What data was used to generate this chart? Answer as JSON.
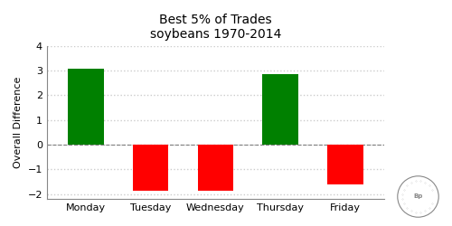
{
  "categories": [
    "Monday",
    "Tuesday",
    "Wednesday",
    "Thursday",
    "Friday"
  ],
  "values": [
    3.07,
    -1.85,
    -1.87,
    2.85,
    -1.6
  ],
  "bar_colors": [
    "#008000",
    "#ff0000",
    "#ff0000",
    "#008000",
    "#ff0000"
  ],
  "title_line1": "Best 5% of Trades",
  "title_line2": "soybeans 1970-2014",
  "ylabel": "Overall Difference",
  "ylim": [
    -2.2,
    4.0
  ],
  "yticks": [
    -2,
    -1,
    0,
    1,
    2,
    3,
    4
  ],
  "grid_color": "#cccccc",
  "background_color": "#ffffff",
  "title_fontsize": 10,
  "axis_fontsize": 8,
  "tick_fontsize": 8,
  "bar_width": 0.55
}
